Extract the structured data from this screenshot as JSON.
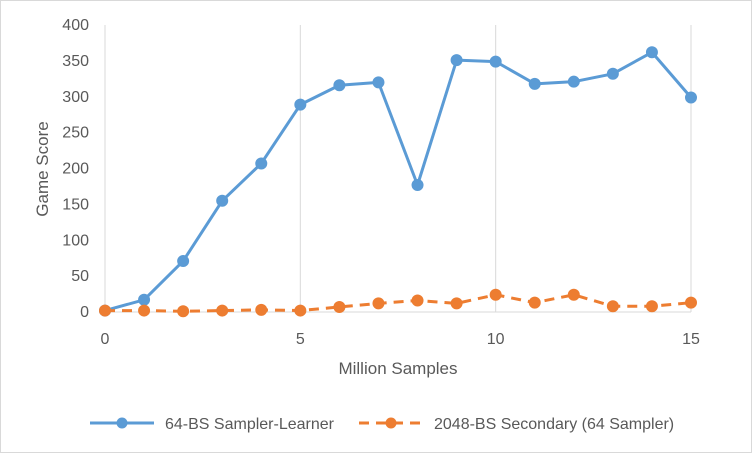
{
  "chart_data": {
    "type": "line",
    "title": "",
    "xlabel": "Million Samples",
    "ylabel": "Game Score",
    "xlim": [
      0,
      15
    ],
    "ylim": [
      0,
      400
    ],
    "x_ticks": [
      "0",
      "5",
      "10",
      "15"
    ],
    "y_ticks": [
      "0",
      "50",
      "100",
      "150",
      "200",
      "250",
      "300",
      "350",
      "400"
    ],
    "grid": "vertical gridlines at x ticks",
    "legend_position": "bottom",
    "x": [
      0,
      1,
      2,
      3,
      4,
      5,
      6,
      7,
      8,
      9,
      10,
      11,
      12,
      13,
      14,
      15
    ],
    "series": [
      {
        "name": "64-BS Sampler-Learner",
        "color": "#5b9bd5",
        "line_style": "solid",
        "marker": "circle",
        "values": [
          2,
          17,
          71,
          155,
          207,
          289,
          316,
          320,
          177,
          351,
          349,
          318,
          321,
          332,
          362,
          299
        ]
      },
      {
        "name": "2048-BS Secondary (64 Sampler)",
        "color": "#ed7d31",
        "line_style": "dashed",
        "marker": "circle",
        "values": [
          2,
          2,
          1,
          2,
          3,
          2,
          7,
          12,
          16,
          12,
          24,
          13,
          24,
          8,
          8,
          13
        ]
      }
    ]
  }
}
